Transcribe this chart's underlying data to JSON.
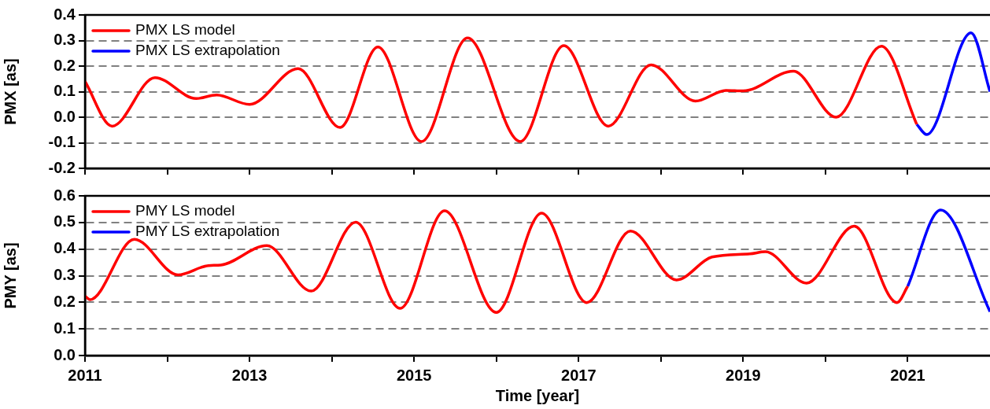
{
  "chart_data": [
    {
      "type": "line",
      "ylabel": "PMX [as]",
      "xlim": [
        2011,
        2022
      ],
      "xticks": [
        {
          "value": 2011,
          "label": null
        },
        {
          "value": 2012,
          "label": null
        },
        {
          "value": 2013,
          "label": null
        },
        {
          "value": 2014,
          "label": null
        },
        {
          "value": 2015,
          "label": null
        },
        {
          "value": 2016,
          "label": null
        },
        {
          "value": 2017,
          "label": null
        },
        {
          "value": 2018,
          "label": null
        },
        {
          "value": 2019,
          "label": null
        },
        {
          "value": 2020,
          "label": null
        },
        {
          "value": 2021,
          "label": null
        }
      ],
      "ylim": [
        -0.2,
        0.4
      ],
      "yticks": [
        -0.2,
        -0.1,
        {
          "value": 0,
          "label": "0.0"
        },
        0.1,
        0.2,
        0.3,
        0.4
      ],
      "tick_labels": "y",
      "grid": "y",
      "legend": "top left",
      "line_style": "solid",
      "marker": "none",
      "series": [
        {
          "name": "PMX LS model",
          "color": "#ff0000",
          "x": [
            2011,
            2011.33,
            2011.85,
            2012.35,
            2012.6,
            2013,
            2013.59,
            2014.1,
            2014.56,
            2015.09,
            2015.65,
            2016.29,
            2016.82,
            2017.36,
            2017.88,
            2018.42,
            2018.79,
            2019,
            2019.61,
            2020.13,
            2020.68,
            2021.11
          ],
          "values": [
            0.14,
            -0.035,
            0.155,
            0.073,
            0.087,
            0.05,
            0.19,
            -0.04,
            0.275,
            -0.095,
            0.31,
            -0.095,
            0.28,
            -0.035,
            0.205,
            0.063,
            0.105,
            0.103,
            0.18,
            0.0,
            0.278,
            -0.028
          ]
        },
        {
          "name": "PMX LS extrapolation",
          "color": "#0000ff",
          "x": [
            2021.11,
            2021.23,
            2021.77,
            2022
          ],
          "values": [
            -0.028,
            -0.068,
            0.33,
            0.1
          ]
        }
      ]
    },
    {
      "type": "line",
      "ylabel": "PMY [as]",
      "xlabel": "Time [year]",
      "xlim": [
        2011,
        2022
      ],
      "xticks": [
        {
          "value": 2011,
          "label": "2011"
        },
        {
          "value": 2012,
          "label": null
        },
        {
          "value": 2013,
          "label": "2013"
        },
        {
          "value": 2014,
          "label": null
        },
        {
          "value": 2015,
          "label": "2015"
        },
        {
          "value": 2016,
          "label": null
        },
        {
          "value": 2017,
          "label": "2017"
        },
        {
          "value": 2018,
          "label": null
        },
        {
          "value": 2019,
          "label": "2019"
        },
        {
          "value": 2020,
          "label": null
        },
        {
          "value": 2021,
          "label": "2021"
        }
      ],
      "ylim": [
        0,
        0.6
      ],
      "yticks": [
        {
          "value": 0,
          "label": "0.0"
        },
        0.1,
        0.2,
        0.3,
        0.4,
        0.5,
        0.6
      ],
      "grid": "y",
      "legend": "top left",
      "line_style": "solid",
      "marker": "none",
      "series": [
        {
          "name": "PMY LS model",
          "color": "#ff0000",
          "x": [
            2011,
            2011.06,
            2011.6,
            2012.13,
            2012.5,
            2012.65,
            2013.21,
            2013.75,
            2014.29,
            2014.83,
            2015.37,
            2016,
            2016.55,
            2017.1,
            2017.63,
            2018.19,
            2018.62,
            2019.08,
            2019.27,
            2019.77,
            2020.35,
            2020.87,
            2021
          ],
          "values": [
            0.223,
            0.21,
            0.437,
            0.303,
            0.338,
            0.34,
            0.413,
            0.242,
            0.501,
            0.177,
            0.544,
            0.162,
            0.535,
            0.199,
            0.468,
            0.284,
            0.37,
            0.382,
            0.39,
            0.272,
            0.486,
            0.199,
            0.26
          ]
        },
        {
          "name": "PMY LS extrapolation",
          "color": "#0000ff",
          "x": [
            2021,
            2021.4,
            2022
          ],
          "values": [
            0.26,
            0.547,
            0.165
          ]
        }
      ]
    }
  ]
}
